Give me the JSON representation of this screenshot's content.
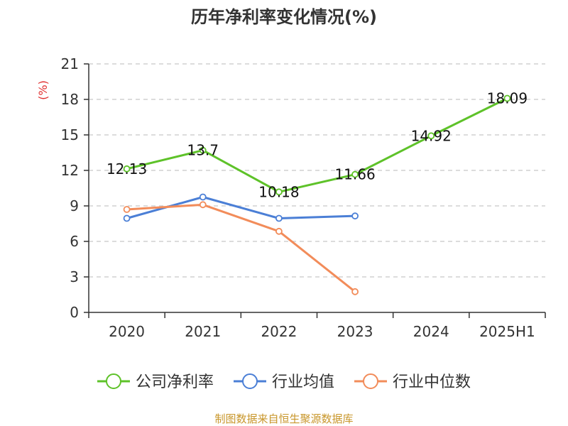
{
  "title": "历年净利率变化情况(%)",
  "unit_label": "(%)",
  "source": "制图数据来自恒生聚源数据库",
  "colors": {
    "company": "#5ec229",
    "industry_avg": "#4b7fd6",
    "industry_median": "#f28c5a",
    "unit": "#e03030",
    "source": "#c8962a",
    "grid": "#c8c8c8",
    "axis": "#333333"
  },
  "chart_data": {
    "type": "line",
    "title": "历年净利率变化情况(%)",
    "ylabel": "(%)",
    "xlabel": "",
    "categories": [
      "2020",
      "2021",
      "2022",
      "2023",
      "2024",
      "2025H1"
    ],
    "ylim": [
      0,
      21
    ],
    "yticks": [
      0,
      3,
      6,
      9,
      12,
      15,
      18,
      21
    ],
    "grid": "horizontal dashed",
    "legend_position": "bottom",
    "series": [
      {
        "name": "公司净利率",
        "color": "#5ec229",
        "values": [
          12.13,
          13.7,
          10.18,
          11.66,
          14.92,
          18.09
        ],
        "labels": [
          "12.13",
          "13.7",
          "10.18",
          "11.66",
          "14.92",
          "18.09"
        ],
        "show_labels": true
      },
      {
        "name": "行业均值",
        "color": "#4b7fd6",
        "values": [
          7.95,
          9.75,
          7.95,
          8.15,
          null,
          null
        ],
        "show_labels": false
      },
      {
        "name": "行业中位数",
        "color": "#f28c5a",
        "values": [
          8.7,
          9.1,
          6.85,
          1.75,
          null,
          null
        ],
        "show_labels": false
      }
    ]
  }
}
